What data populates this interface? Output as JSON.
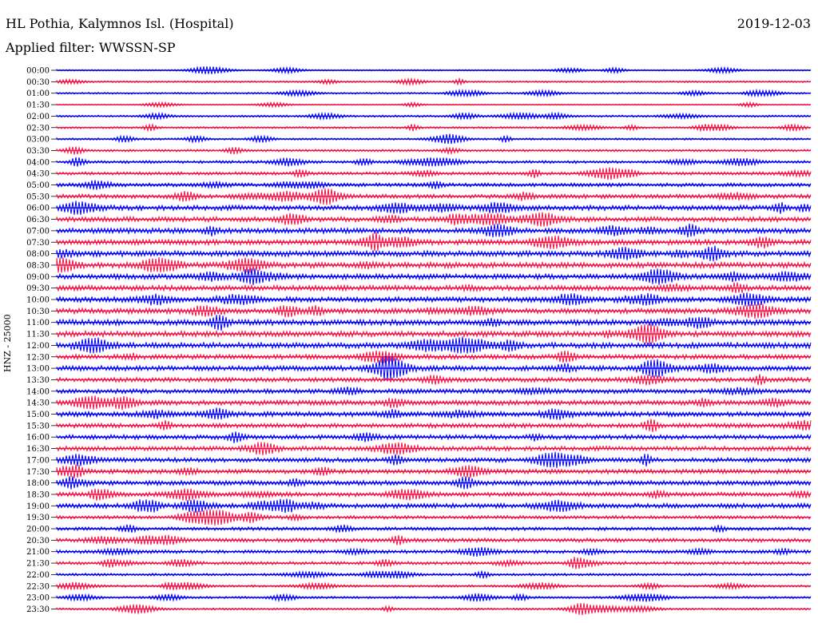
{
  "header": {
    "station": "HL Pothia, Kalymnos Isl. (Hospital)",
    "filter_prefix": "Applied filter:",
    "filter_name": "WWSSN-SP",
    "date": "2019-12-03"
  },
  "axis": {
    "channel_label": "HNZ - 25000"
  },
  "colors": {
    "even_trace": "#0000ee",
    "odd_trace": "#ee1144",
    "background": "#ffffff"
  },
  "traces": [
    {
      "time": "00:00",
      "activity": 0.15
    },
    {
      "time": "00:30",
      "activity": 0.2
    },
    {
      "time": "01:00",
      "activity": 0.2
    },
    {
      "time": "01:30",
      "activity": 0.1
    },
    {
      "time": "02:00",
      "activity": 0.25
    },
    {
      "time": "02:30",
      "activity": 0.25
    },
    {
      "time": "03:00",
      "activity": 0.25
    },
    {
      "time": "03:30",
      "activity": 0.3
    },
    {
      "time": "04:00",
      "activity": 0.4
    },
    {
      "time": "04:30",
      "activity": 0.45
    },
    {
      "time": "05:00",
      "activity": 0.55
    },
    {
      "time": "05:30",
      "activity": 0.65
    },
    {
      "time": "06:00",
      "activity": 0.8
    },
    {
      "time": "06:30",
      "activity": 0.8
    },
    {
      "time": "07:00",
      "activity": 0.85
    },
    {
      "time": "07:30",
      "activity": 0.85
    },
    {
      "time": "08:00",
      "activity": 0.9
    },
    {
      "time": "08:30",
      "activity": 0.9
    },
    {
      "time": "09:00",
      "activity": 0.85
    },
    {
      "time": "09:30",
      "activity": 0.85
    },
    {
      "time": "10:00",
      "activity": 0.85
    },
    {
      "time": "10:30",
      "activity": 0.85
    },
    {
      "time": "11:00",
      "activity": 0.9
    },
    {
      "time": "11:30",
      "activity": 0.9
    },
    {
      "time": "12:00",
      "activity": 0.9
    },
    {
      "time": "12:30",
      "activity": 0.75
    },
    {
      "time": "13:00",
      "activity": 0.8
    },
    {
      "time": "13:30",
      "activity": 0.7
    },
    {
      "time": "14:00",
      "activity": 0.7
    },
    {
      "time": "14:30",
      "activity": 0.8
    },
    {
      "time": "15:00",
      "activity": 0.8
    },
    {
      "time": "15:30",
      "activity": 0.7
    },
    {
      "time": "16:00",
      "activity": 0.7
    },
    {
      "time": "16:30",
      "activity": 0.7
    },
    {
      "time": "17:00",
      "activity": 0.7
    },
    {
      "time": "17:30",
      "activity": 0.7
    },
    {
      "time": "18:00",
      "activity": 0.75
    },
    {
      "time": "18:30",
      "activity": 0.65
    },
    {
      "time": "19:00",
      "activity": 0.75
    },
    {
      "time": "19:30",
      "activity": 0.5
    },
    {
      "time": "20:00",
      "activity": 0.5
    },
    {
      "time": "20:30",
      "activity": 0.6
    },
    {
      "time": "21:00",
      "activity": 0.5
    },
    {
      "time": "21:30",
      "activity": 0.45
    },
    {
      "time": "22:00",
      "activity": 0.35
    },
    {
      "time": "22:30",
      "activity": 0.3
    },
    {
      "time": "23:00",
      "activity": 0.3
    },
    {
      "time": "23:30",
      "activity": 0.25
    }
  ]
}
